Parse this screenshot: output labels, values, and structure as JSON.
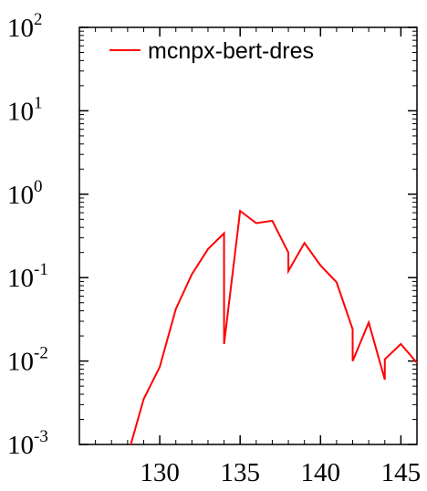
{
  "chart_data": {
    "type": "line",
    "title": "",
    "xlabel": "",
    "ylabel": "",
    "xlim": [
      125,
      146
    ],
    "ylim": [
      0.001,
      100
    ],
    "y_scale": "log",
    "grid": false,
    "legend_position": "top-left",
    "x_ticks": [
      {
        "value": 130,
        "label": "130"
      },
      {
        "value": 135,
        "label": "135"
      },
      {
        "value": 140,
        "label": "140"
      },
      {
        "value": 145,
        "label": "145"
      }
    ],
    "y_ticks": [
      {
        "value": 0.001,
        "base": "10",
        "exp": "-3"
      },
      {
        "value": 0.01,
        "base": "10",
        "exp": "-2"
      },
      {
        "value": 0.1,
        "base": "10",
        "exp": "-1"
      },
      {
        "value": 1,
        "base": "10",
        "exp": "0"
      },
      {
        "value": 10,
        "base": "10",
        "exp": "1"
      },
      {
        "value": 100,
        "base": "10",
        "exp": "2"
      }
    ],
    "series": [
      {
        "name": "mcnpx-bert-dres",
        "color": "#ff0000",
        "x": [
          128.2,
          129,
          130,
          131,
          132,
          133,
          133.999,
          134.001,
          135,
          136,
          137,
          137.999,
          138.001,
          139,
          140,
          141,
          141.999,
          142.001,
          143,
          143.999,
          144.001,
          145,
          146
        ],
        "y": [
          0.001,
          0.0035,
          0.0085,
          0.042,
          0.11,
          0.22,
          0.34,
          0.016,
          0.63,
          0.45,
          0.48,
          0.2,
          0.12,
          0.26,
          0.14,
          0.088,
          0.024,
          0.01,
          0.029,
          0.006,
          0.0105,
          0.016,
          0.0095
        ]
      }
    ]
  }
}
